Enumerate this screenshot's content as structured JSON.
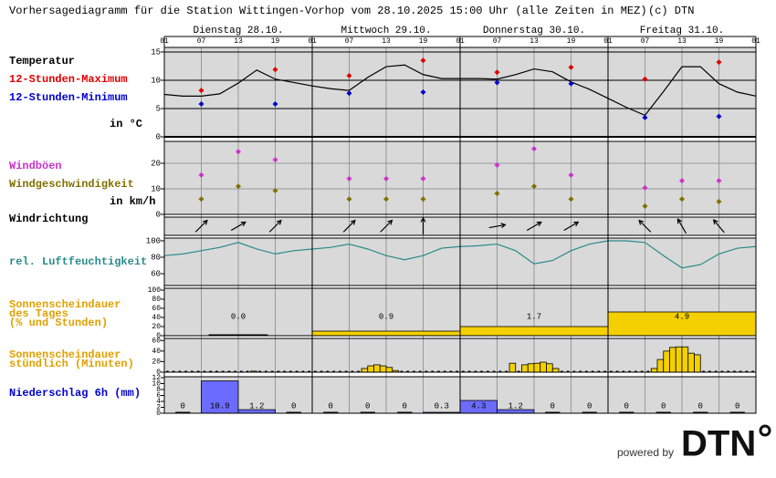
{
  "title": "Vorhersagediagramm für die Station Wittingen-Vorhop vom 28.10.2025 15:00 Uhr (alle Zeiten in MEZ)",
  "copyright": "(c) DTN",
  "days": [
    "Dienstag 28.10.",
    "Mittwoch 29.10.",
    "Donnerstag 30.10.",
    "Freitag 31.10."
  ],
  "footer": {
    "powered_by": "powered by",
    "logo": "DTN"
  },
  "chart_data": [
    {
      "type": "line",
      "unit": "in °C",
      "categories": [
        "01",
        null,
        "07",
        null,
        "13",
        null,
        "19",
        null,
        "01",
        null,
        "07",
        null,
        "13",
        null,
        "19",
        null,
        "01",
        null,
        "07",
        null,
        "13",
        null,
        "19",
        null,
        "01",
        null,
        "07",
        null,
        "13",
        null,
        "19",
        null,
        "01"
      ],
      "ylim": [
        0,
        15.8
      ],
      "yticks": [
        0,
        5,
        10,
        15
      ],
      "grid": true,
      "series": [
        {
          "name": "Temperatur",
          "color": "#000000",
          "mode": "line",
          "values": [
            7.5,
            7.2,
            7.2,
            7.6,
            9.5,
            11.8,
            10.2,
            9.6,
            9.0,
            8.5,
            8.2,
            10.5,
            12.4,
            12.7,
            11.0,
            10.3,
            10.3,
            10.3,
            10.2,
            11.0,
            12.0,
            11.5,
            9.7,
            8.4,
            6.8,
            5.2,
            3.8,
            8.0,
            12.4,
            12.4,
            9.4,
            7.9,
            7.2
          ]
        },
        {
          "name": "12-Stunden-Maximum",
          "color": "#e00000",
          "mode": "points",
          "values": [
            null,
            null,
            8.2,
            null,
            null,
            null,
            11.9,
            null,
            null,
            null,
            10.8,
            null,
            null,
            null,
            13.5,
            null,
            null,
            null,
            11.4,
            null,
            null,
            null,
            12.3,
            null,
            null,
            null,
            10.2,
            null,
            null,
            null,
            13.2,
            null,
            null
          ]
        },
        {
          "name": "12-Stunden-Minimum",
          "color": "#0000d0",
          "mode": "points",
          "values": [
            null,
            null,
            5.8,
            null,
            null,
            null,
            5.8,
            null,
            null,
            null,
            7.7,
            null,
            null,
            null,
            7.9,
            null,
            null,
            null,
            9.6,
            null,
            null,
            null,
            9.4,
            null,
            null,
            null,
            3.4,
            null,
            null,
            null,
            3.6,
            null,
            null
          ]
        }
      ]
    },
    {
      "type": "line",
      "unit": "in km/h",
      "ylim": [
        0,
        28.6
      ],
      "yticks": [
        0,
        10,
        20
      ],
      "grid": true,
      "series": [
        {
          "name": "Windböen",
          "color": "#cc33cc",
          "mode": "points",
          "values": [
            null,
            null,
            15.4,
            null,
            24.6,
            null,
            21.4,
            null,
            null,
            null,
            14,
            null,
            14,
            null,
            14,
            null,
            null,
            null,
            19.3,
            null,
            25.7,
            null,
            15.4,
            null,
            null,
            null,
            10.4,
            null,
            13.2,
            null,
            13.2,
            null,
            null
          ]
        },
        {
          "name": "Windgeschwindigkeit",
          "color": "#807000",
          "mode": "points",
          "values": [
            null,
            null,
            6,
            null,
            11,
            null,
            9.3,
            null,
            null,
            null,
            6,
            null,
            6,
            null,
            6,
            null,
            null,
            null,
            8.2,
            null,
            11,
            null,
            6,
            null,
            null,
            null,
            3.2,
            null,
            6,
            null,
            5,
            null,
            null
          ]
        }
      ]
    },
    {
      "type": "arrows",
      "title": "Windrichtung",
      "directions": [
        null,
        null,
        45,
        null,
        60,
        null,
        45,
        null,
        null,
        null,
        45,
        null,
        45,
        null,
        0,
        null,
        null,
        null,
        80,
        null,
        60,
        null,
        60,
        null,
        null,
        null,
        315,
        null,
        330,
        null,
        320,
        null,
        null
      ]
    },
    {
      "type": "line",
      "ylim": [
        45.6,
        103.3
      ],
      "yticks": [
        60,
        80,
        100
      ],
      "grid": false,
      "series": [
        {
          "name": "rel. Luftfeuchtigkeit",
          "color": "#2a8a8a",
          "mode": "line",
          "values": [
            82,
            84,
            88,
            92,
            98,
            90,
            84,
            88,
            90,
            92,
            96,
            90,
            82,
            77,
            82,
            91,
            93,
            94,
            96,
            88,
            72,
            76,
            88,
            96,
            100,
            100,
            98,
            82,
            67,
            71,
            84,
            91,
            93
          ]
        }
      ]
    },
    {
      "type": "bar",
      "title_lines": [
        "Sonnenscheindauer",
        "des Tages",
        "(% und Stunden)"
      ],
      "title_color": "#e0a000",
      "values": [
        0,
        10,
        20,
        52
      ],
      "hours": [
        "0.0",
        "0.9",
        "1.7",
        "4.9"
      ],
      "color": "#f5d000",
      "ylim": [
        0,
        104
      ],
      "yticks": [
        0,
        20,
        40,
        60,
        80,
        100
      ],
      "grid": false
    },
    {
      "type": "bar",
      "title_lines": [
        "Sonnenscheindauer",
        "stündlich (Minuten)"
      ],
      "title_color": "#e0a000",
      "values": [
        0,
        0,
        0,
        0,
        0,
        0,
        0,
        0,
        0,
        0,
        0,
        0,
        0,
        0,
        2,
        0,
        0,
        0,
        0,
        0,
        0,
        0,
        0,
        0,
        0,
        0,
        0,
        0,
        0,
        0,
        0,
        0,
        7,
        12,
        14,
        12,
        9,
        3,
        0,
        0,
        0,
        0,
        0,
        0,
        0,
        0,
        0,
        0,
        0,
        0,
        0,
        0,
        0,
        0,
        0,
        0,
        17,
        0,
        14,
        16,
        17,
        19,
        16,
        7,
        0,
        0,
        0,
        0,
        0,
        0,
        0,
        0,
        0,
        0,
        0,
        0,
        0,
        0,
        0,
        7,
        24,
        40,
        47,
        48,
        48,
        36,
        33,
        0,
        0,
        0,
        0,
        0,
        0,
        0,
        0,
        0
      ],
      "color": "#f5d000",
      "ylim": [
        0,
        64
      ],
      "yticks": [
        0,
        20,
        40,
        60
      ],
      "grid": false
    },
    {
      "type": "bar",
      "title_lines": [
        "Niederschlag 6h (mm)"
      ],
      "title_color": "#0000d0",
      "values": [
        0,
        10.9,
        1.2,
        0,
        0,
        0,
        0,
        0.3,
        4.3,
        1.2,
        0,
        0,
        0,
        0,
        0,
        0
      ],
      "color": "#6b6bff",
      "ylim": [
        0,
        12.3
      ],
      "yticks": [
        0,
        2,
        4,
        6,
        8,
        10,
        12
      ],
      "grid": false
    }
  ]
}
